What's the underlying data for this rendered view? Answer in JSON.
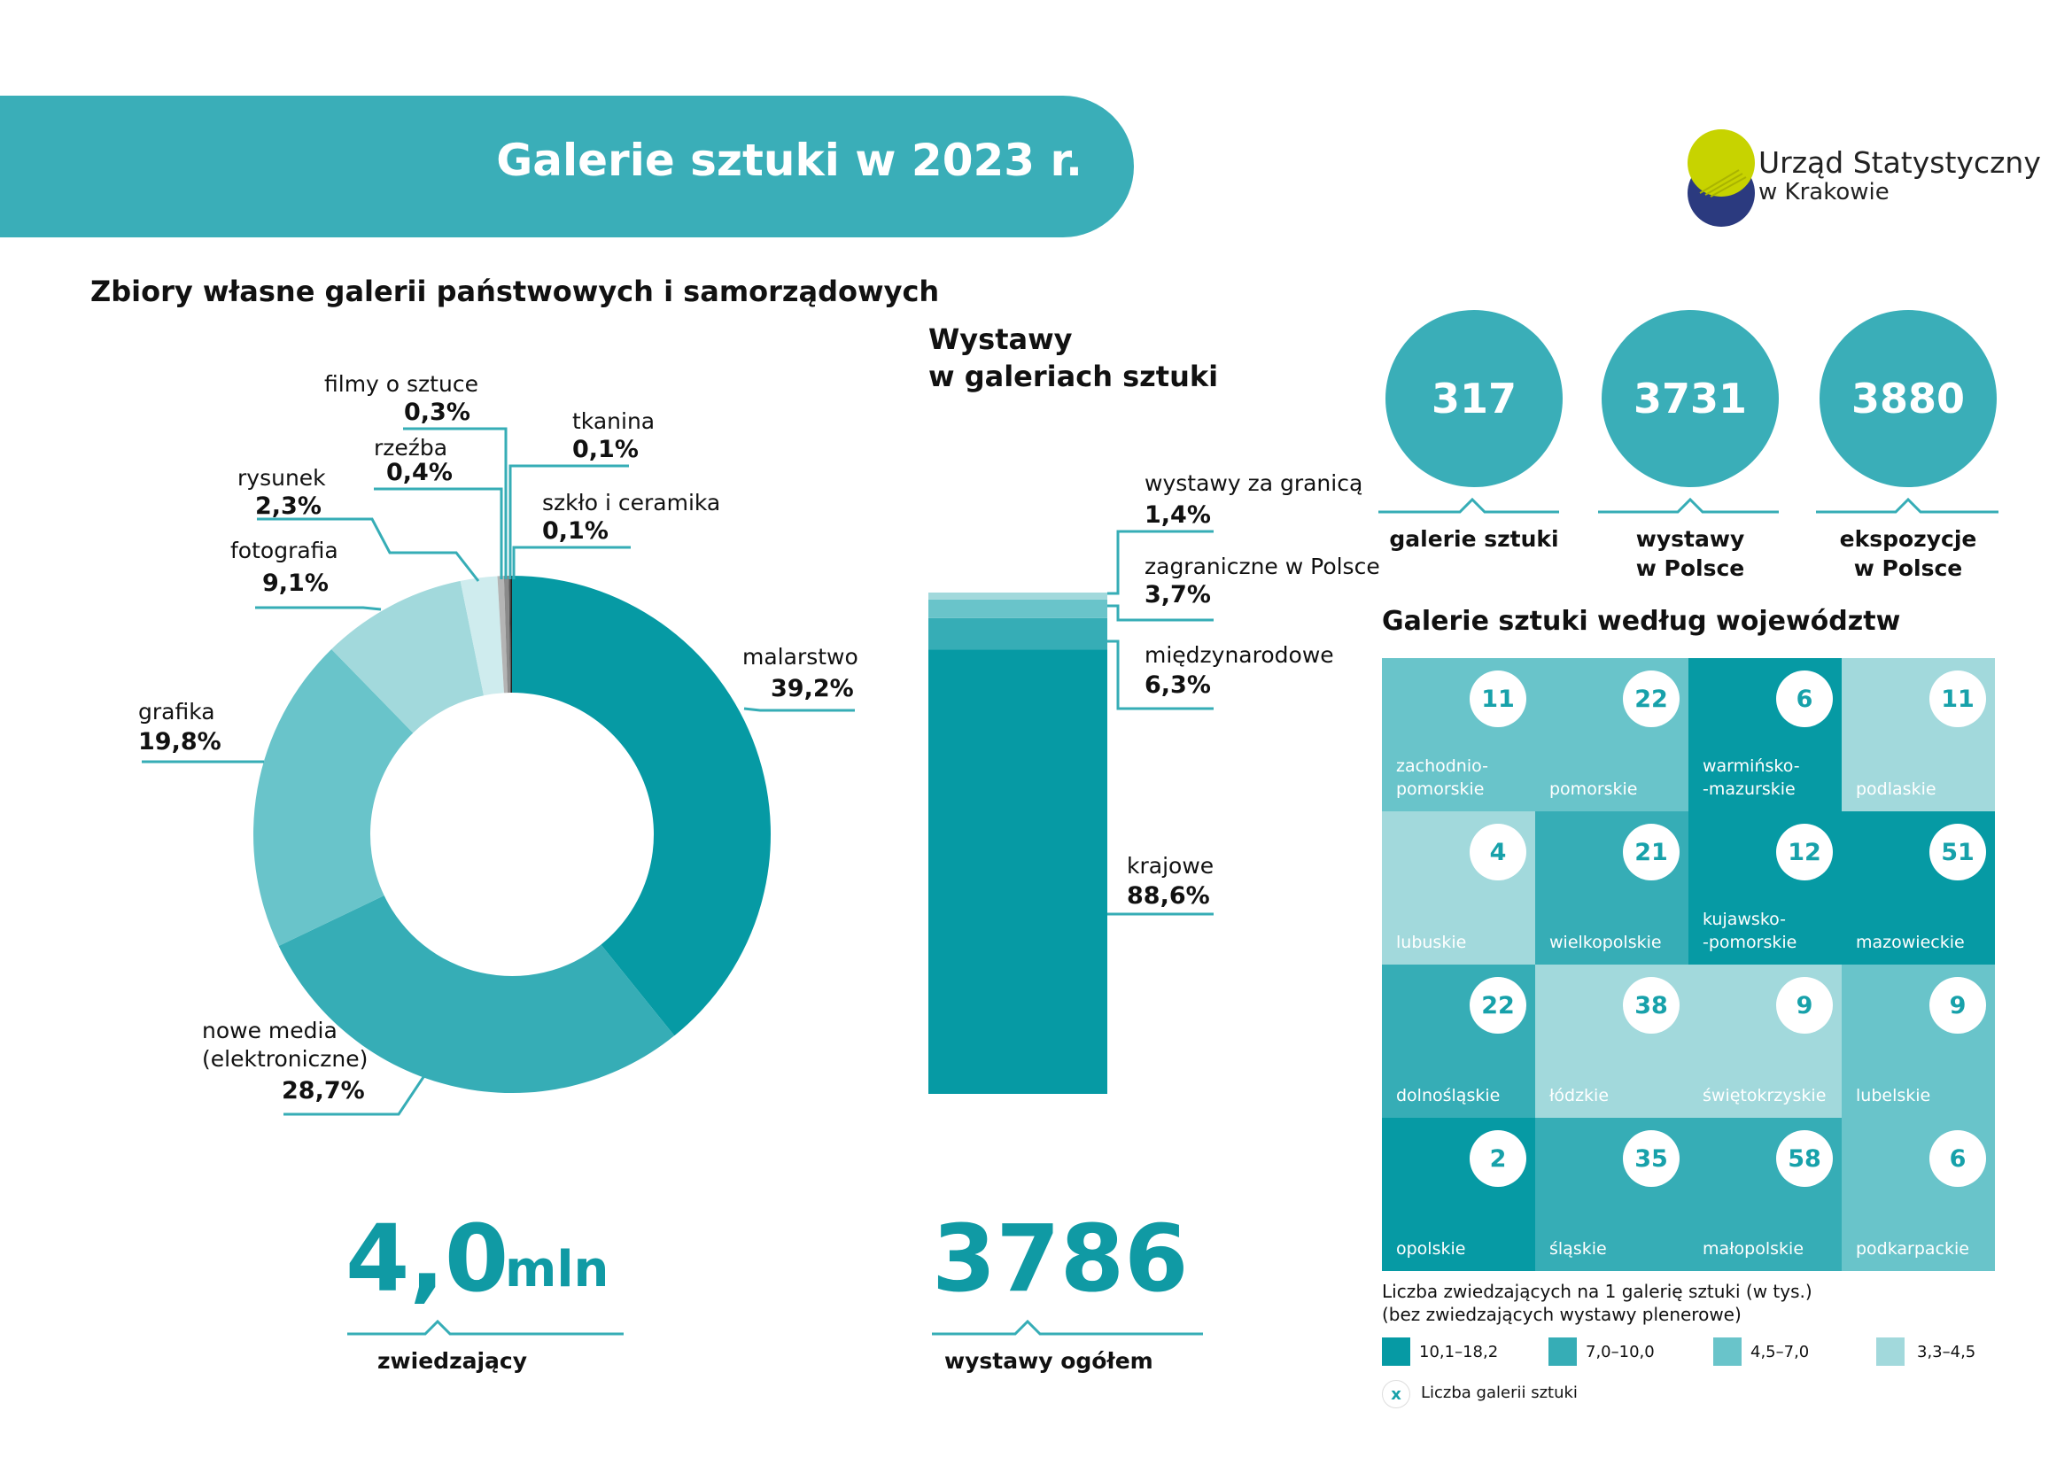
{
  "banner": {
    "title": "Galerie sztuki w 2023 r."
  },
  "logo": {
    "line1": "Urząd Statystyczny",
    "line2": "w Krakowie",
    "colors": [
      "#c7d300",
      "#2b3a7f"
    ]
  },
  "colors": {
    "teal_dark": "#069aa4",
    "teal_mid": "#36adb6",
    "teal_light": "#69c4ca",
    "teal_pale": "#a2d9dc",
    "accent_text": "#109aa4"
  },
  "collections": {
    "title": "Zbiory własne galerii państwowych i samorządowych",
    "total_value": "4,0",
    "total_unit": "mln",
    "total_label": "zwiedzający"
  },
  "exhibitions": {
    "title_line1": "Wystawy",
    "title_line2": "w galeriach sztuki",
    "total_value": "3786",
    "total_label": "wystawy ogółem"
  },
  "stats": [
    {
      "value": "317",
      "label_line1": "galerie sztuki",
      "label_line2": ""
    },
    {
      "value": "3731",
      "label_line1": "wystawy",
      "label_line2": "w Polsce"
    },
    {
      "value": "3880",
      "label_line1": "ekspozycje",
      "label_line2": "w Polsce"
    }
  ],
  "map": {
    "title": "Galerie sztuki według województw",
    "cells": [
      {
        "count": "11",
        "name": "zachodnio-\npomorskie",
        "level": 2
      },
      {
        "count": "22",
        "name": "pomorskie",
        "level": 2
      },
      {
        "count": "6",
        "name": "warmińsko-\n-mazurskie",
        "level": 0
      },
      {
        "count": "11",
        "name": "podlaskie",
        "level": 3
      },
      {
        "count": "4",
        "name": "lubuskie",
        "level": 3
      },
      {
        "count": "21",
        "name": "wielkopolskie",
        "level": 1
      },
      {
        "count": "12",
        "name": "kujawsko-\n-pomorskie",
        "level": 0
      },
      {
        "count": "51",
        "name": "mazowieckie",
        "level": 0
      },
      {
        "count": "22",
        "name": "dolnośląskie",
        "level": 1
      },
      {
        "count": "38",
        "name": "łódzkie",
        "level": 3
      },
      {
        "count": "9",
        "name": "świętokrzyskie",
        "level": 3
      },
      {
        "count": "9",
        "name": "lubelskie",
        "level": 2
      },
      {
        "count": "2",
        "name": "opolskie",
        "level": 0
      },
      {
        "count": "35",
        "name": "śląskie",
        "level": 1
      },
      {
        "count": "58",
        "name": "małopolskie",
        "level": 1
      },
      {
        "count": "6",
        "name": "podkarpackie",
        "level": 2
      }
    ],
    "legend_title_line1": "Liczba zwiedzających na 1 galerię sztuki (w tys.)",
    "legend_title_line2": "(bez zwiedzających wystawy plenerowe)",
    "legend": [
      {
        "label": "10,1–18,2",
        "color": "#069aa4"
      },
      {
        "label": "7,0–10,0",
        "color": "#36adb6"
      },
      {
        "label": "4,5–7,0",
        "color": "#69c4ca"
      },
      {
        "label": "3,3–4,5",
        "color": "#a2d9dc"
      }
    ],
    "legend_marker_symbol": "x",
    "legend_marker_label": "Liczba galerii sztuki"
  },
  "chart_data": [
    {
      "type": "pie",
      "title": "Zbiory własne galerii państwowych i samorządowych",
      "slices": [
        {
          "label": "malarstwo",
          "value": 39.2,
          "display": "39,2%",
          "color": "#069aa4"
        },
        {
          "label": "nowe media (elektroniczne)",
          "value": 28.7,
          "display": "28,7%",
          "color": "#36adb6"
        },
        {
          "label": "grafika",
          "value": 19.8,
          "display": "19,8%",
          "color": "#69c4ca"
        },
        {
          "label": "fotografia",
          "value": 9.1,
          "display": "9,1%",
          "color": "#a2d9dc"
        },
        {
          "label": "rysunek",
          "value": 2.3,
          "display": "2,3%",
          "color": "#cfecee"
        },
        {
          "label": "rzeźba",
          "value": 0.4,
          "display": "0,4%",
          "color": "#b4b4b4"
        },
        {
          "label": "filmy o sztuce",
          "value": 0.3,
          "display": "0,3%",
          "color": "#8a8a8a"
        },
        {
          "label": "tkanina",
          "value": 0.1,
          "display": "0,1%",
          "color": "#555555"
        },
        {
          "label": "szkło i ceramika",
          "value": 0.1,
          "display": "0,1%",
          "color": "#222222"
        }
      ]
    },
    {
      "type": "bar",
      "title": "Wystawy w galeriach sztuki",
      "stacked": true,
      "segments": [
        {
          "label": "krajowe",
          "value": 88.6,
          "display": "88,6%",
          "color": "#069aa4"
        },
        {
          "label": "międzynarodowe",
          "value": 6.3,
          "display": "6,3%",
          "color": "#36adb6"
        },
        {
          "label": "zagraniczne w Polsce",
          "value": 3.7,
          "display": "3,7%",
          "color": "#69c4ca"
        },
        {
          "label": "wystawy za granicą",
          "value": 1.4,
          "display": "1,4%",
          "color": "#a2d9dc"
        }
      ]
    }
  ]
}
